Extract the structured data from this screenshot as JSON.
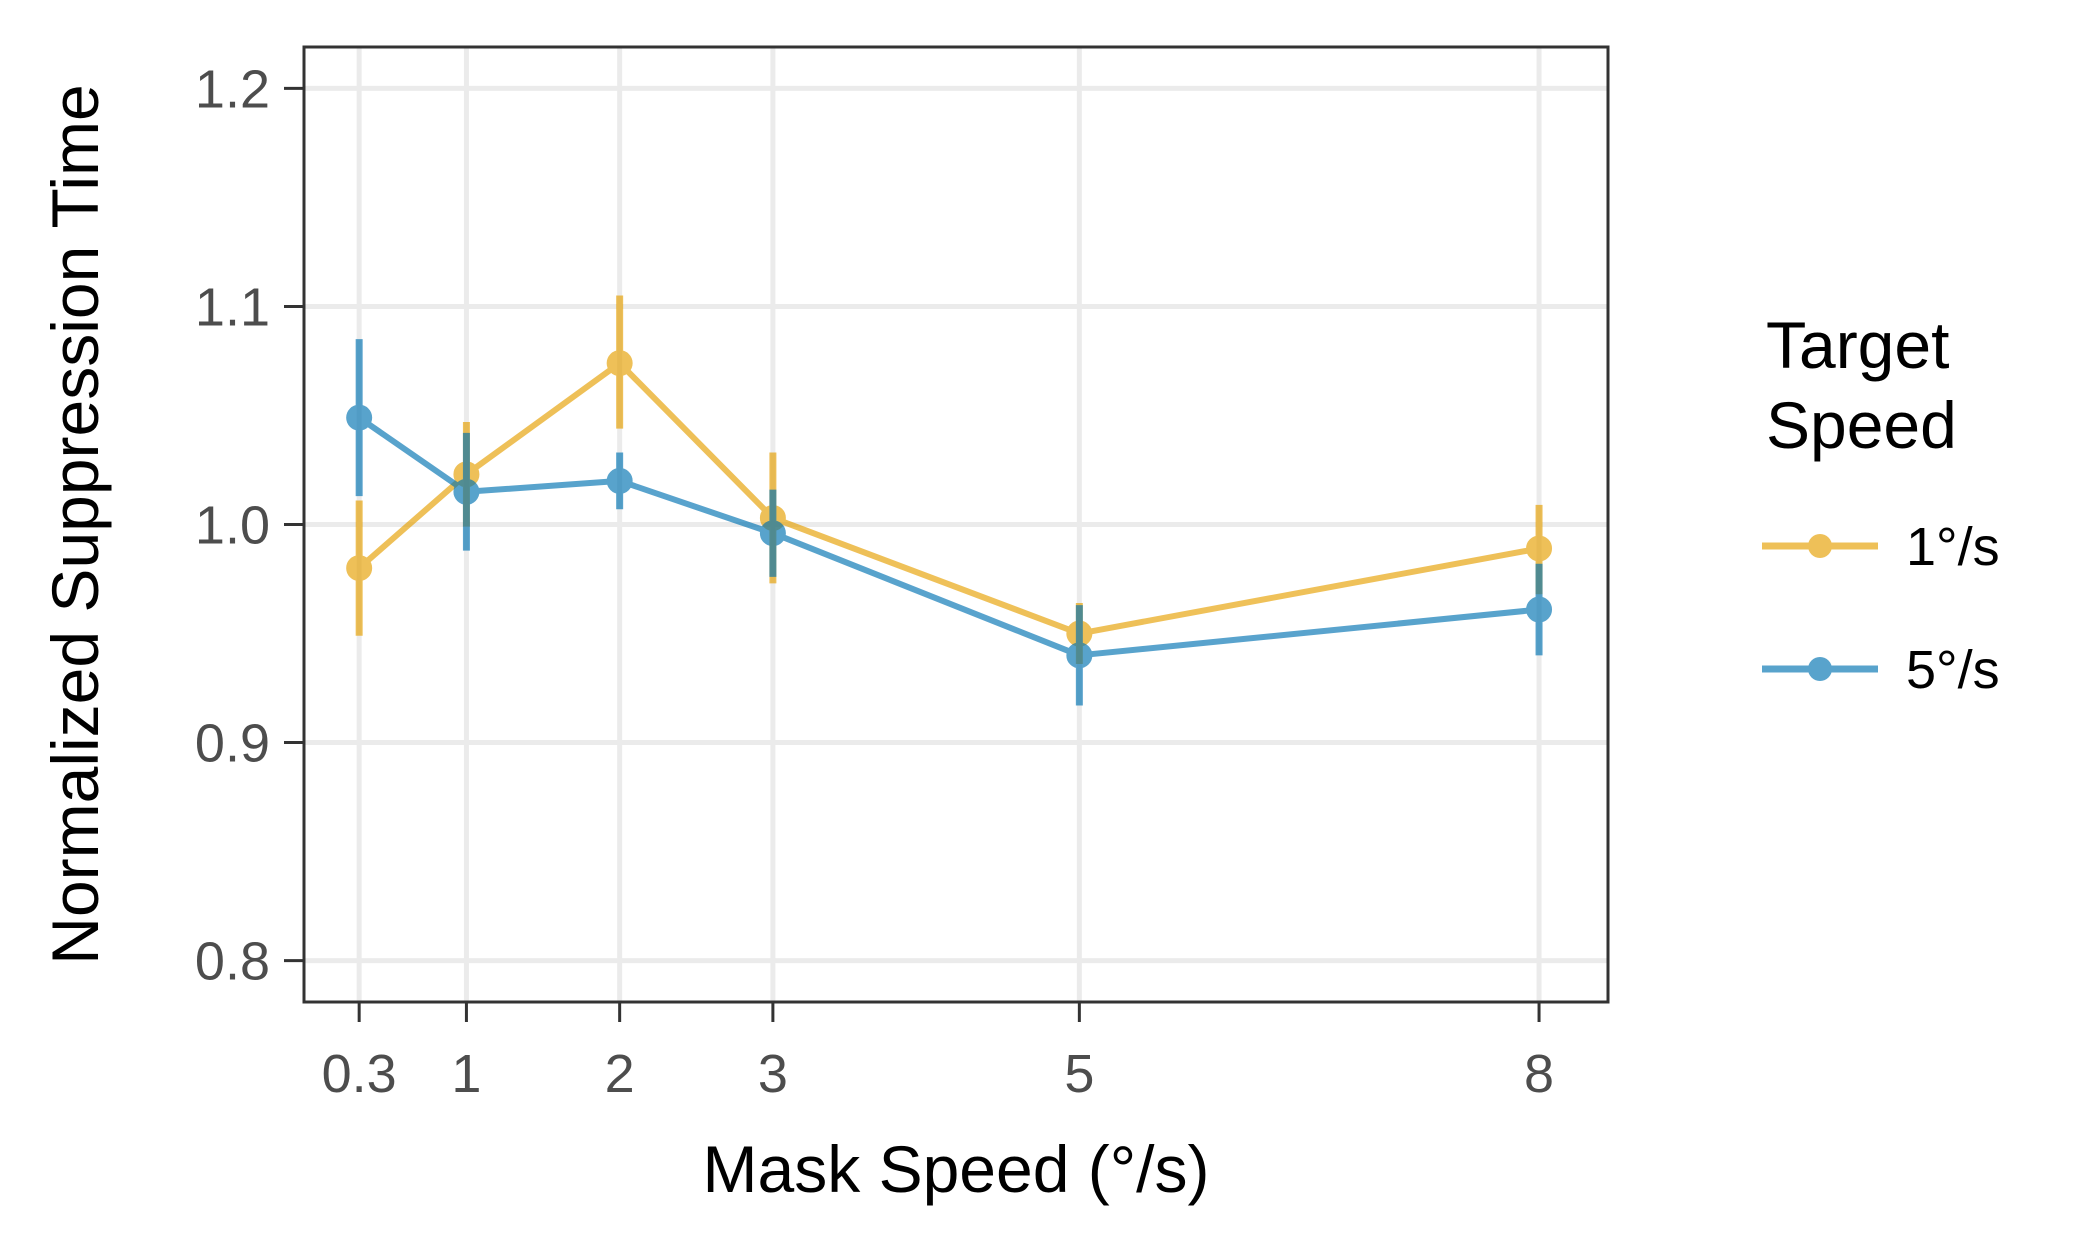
{
  "chart_data": {
    "type": "line",
    "xlabel": "Mask Speed (°/s)",
    "ylabel": "Normalized Suppression Time",
    "x": [
      0.3,
      1,
      2,
      3,
      5,
      8
    ],
    "x_tick_labels": [
      "0.3",
      "1",
      "2",
      "3",
      "5",
      "8"
    ],
    "y_ticks": [
      0.8,
      0.9,
      1.0,
      1.1,
      1.2
    ],
    "y_tick_labels": [
      "0.8",
      "0.9",
      "1.0",
      "1.1",
      "1.2"
    ],
    "xlim": [
      -0.06,
      8.45
    ],
    "ylim": [
      0.781,
      1.219
    ],
    "grid": true,
    "legend": {
      "title_lines": [
        "Target",
        "Speed"
      ],
      "position": "right"
    },
    "series": [
      {
        "name": "1°/s",
        "color": "#E69F00",
        "y": [
          0.98,
          1.023,
          1.074,
          1.003,
          0.95,
          0.989
        ],
        "err_low": [
          0.949,
          0.999,
          1.044,
          0.973,
          0.936,
          0.968
        ],
        "err_high": [
          1.011,
          1.047,
          1.105,
          1.033,
          0.964,
          1.009
        ]
      },
      {
        "name": "5°/s",
        "color": "#0072B2",
        "y": [
          1.049,
          1.015,
          1.02,
          0.996,
          0.94,
          0.961
        ],
        "err_low": [
          1.013,
          0.988,
          1.007,
          0.976,
          0.917,
          0.94
        ],
        "err_high": [
          1.085,
          1.042,
          1.033,
          1.016,
          0.963,
          0.982
        ]
      }
    ]
  }
}
